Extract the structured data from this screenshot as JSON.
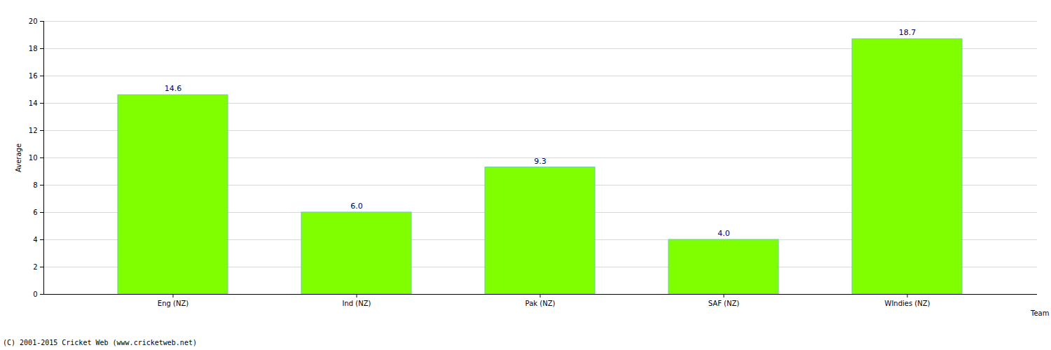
{
  "chart_data": {
    "type": "bar",
    "caption": "(C) 2001-2015 Cricket Web (www.cricketweb.net)",
    "x_label": "Team",
    "y_label": "Average",
    "categories": [
      "Eng (NZ)",
      "Ind (NZ)",
      "Pak (NZ)",
      "SAF (NZ)",
      "WIndies (NZ)"
    ],
    "values": [
      14.6,
      6.0,
      9.3,
      4.0,
      18.7
    ],
    "value_labels": [
      "14.6",
      "6.0",
      "9.3",
      "4.0",
      "18.7"
    ],
    "data_labels": true,
    "color": "#7fff00",
    "ylim": [
      0,
      20
    ],
    "yticks": [
      0,
      2,
      4,
      6,
      8,
      10,
      12,
      14,
      16,
      18,
      20
    ],
    "grid": true
  }
}
